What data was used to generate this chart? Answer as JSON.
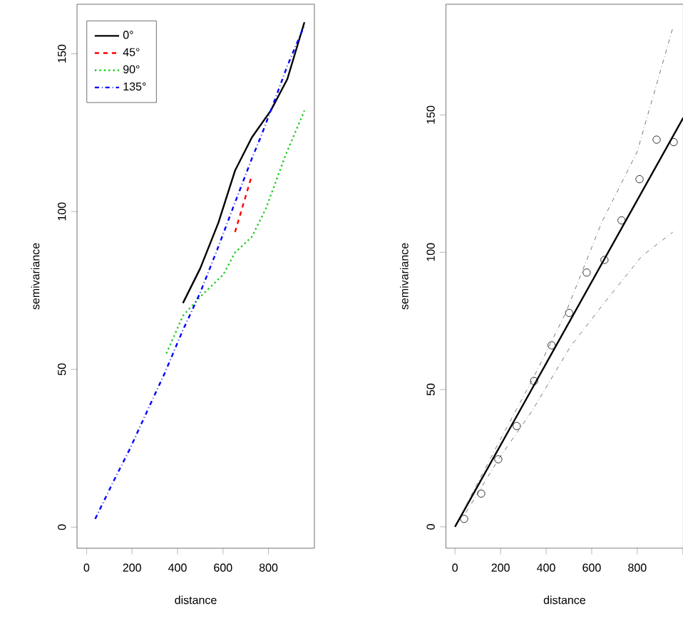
{
  "chart_data": [
    {
      "type": "line",
      "xlabel": "distance",
      "ylabel": "semivariance",
      "xlim": [
        -42,
        1002
      ],
      "ylim": [
        -6.7,
        165.7
      ],
      "xticks": [
        0,
        200,
        400,
        600,
        800
      ],
      "yticks": [
        0,
        50,
        100,
        150
      ],
      "legend": "top left",
      "series": [
        {
          "name": "0°",
          "color": "#000000",
          "line_style": "solid",
          "x": [
            424,
            500,
            580,
            653,
            727,
            810,
            883,
            958
          ],
          "values": [
            71,
            82,
            96.5,
            113,
            123.5,
            132,
            142,
            160
          ]
        },
        {
          "name": "45°",
          "color": "#ff0000",
          "line_style": "dashed",
          "x": [
            653,
            727
          ],
          "values": [
            93.5,
            111.5
          ]
        },
        {
          "name": "90°",
          "color": "#22cc22",
          "line_style": "dotted",
          "x": [
            351,
            424,
            500,
            601,
            653,
            727,
            789,
            873,
            958
          ],
          "values": [
            55,
            67,
            73,
            80,
            87,
            92,
            101,
            117.5,
            132
          ]
        },
        {
          "name": "135°",
          "color": "#0000ff",
          "line_style": "dashdot",
          "x": [
            38,
            115,
            192,
            268,
            345,
            421,
            498,
            575,
            643,
            728,
            768,
            831,
            882,
            958
          ],
          "values": [
            2.6,
            14,
            25,
            37,
            49,
            62,
            74,
            88,
            101,
            117,
            124,
            136,
            146,
            159
          ]
        }
      ]
    },
    {
      "type": "scatter",
      "xlabel": "distance",
      "ylabel": "semivariance",
      "xlim": [
        -40,
        1002
      ],
      "ylim": [
        -7.8,
        190.3
      ],
      "xticks": [
        0,
        200,
        400,
        600,
        800,
        {
          "value": 1000,
          "label": null
        }
      ],
      "yticks": [
        0,
        50,
        100,
        150
      ],
      "series": [
        {
          "type": "scatter",
          "marker": "circle",
          "color": "#000000",
          "x": [
            40,
            115,
            190,
            271,
            347,
            424,
            501,
            578,
            656,
            731,
            810,
            885,
            960
          ],
          "values": [
            2.9,
            12.1,
            24.6,
            36.7,
            53.1,
            66.1,
            77.9,
            92.6,
            97.2,
            111.6,
            126.6,
            141,
            140.1
          ]
        },
        {
          "type": "line",
          "color": "#000000",
          "line_style": "solid",
          "x": [
            0,
            1002
          ],
          "values": [
            0,
            149
          ]
        },
        {
          "type": "line",
          "color": "#777777",
          "line_style": "dashdot",
          "x": [
            48,
            194,
            340,
            486,
            643,
            800,
            956
          ],
          "values": [
            7.8,
            31,
            53.6,
            77.9,
            110.7,
            136.7,
            181.7
          ]
        },
        {
          "type": "line",
          "color": "#777777",
          "line_style": "dashdot",
          "x": [
            48,
            194,
            340,
            507,
            653,
            820,
            956
          ],
          "values": [
            5.2,
            25,
            42.4,
            65.7,
            81.3,
            98.6,
            107.3
          ]
        }
      ]
    }
  ]
}
